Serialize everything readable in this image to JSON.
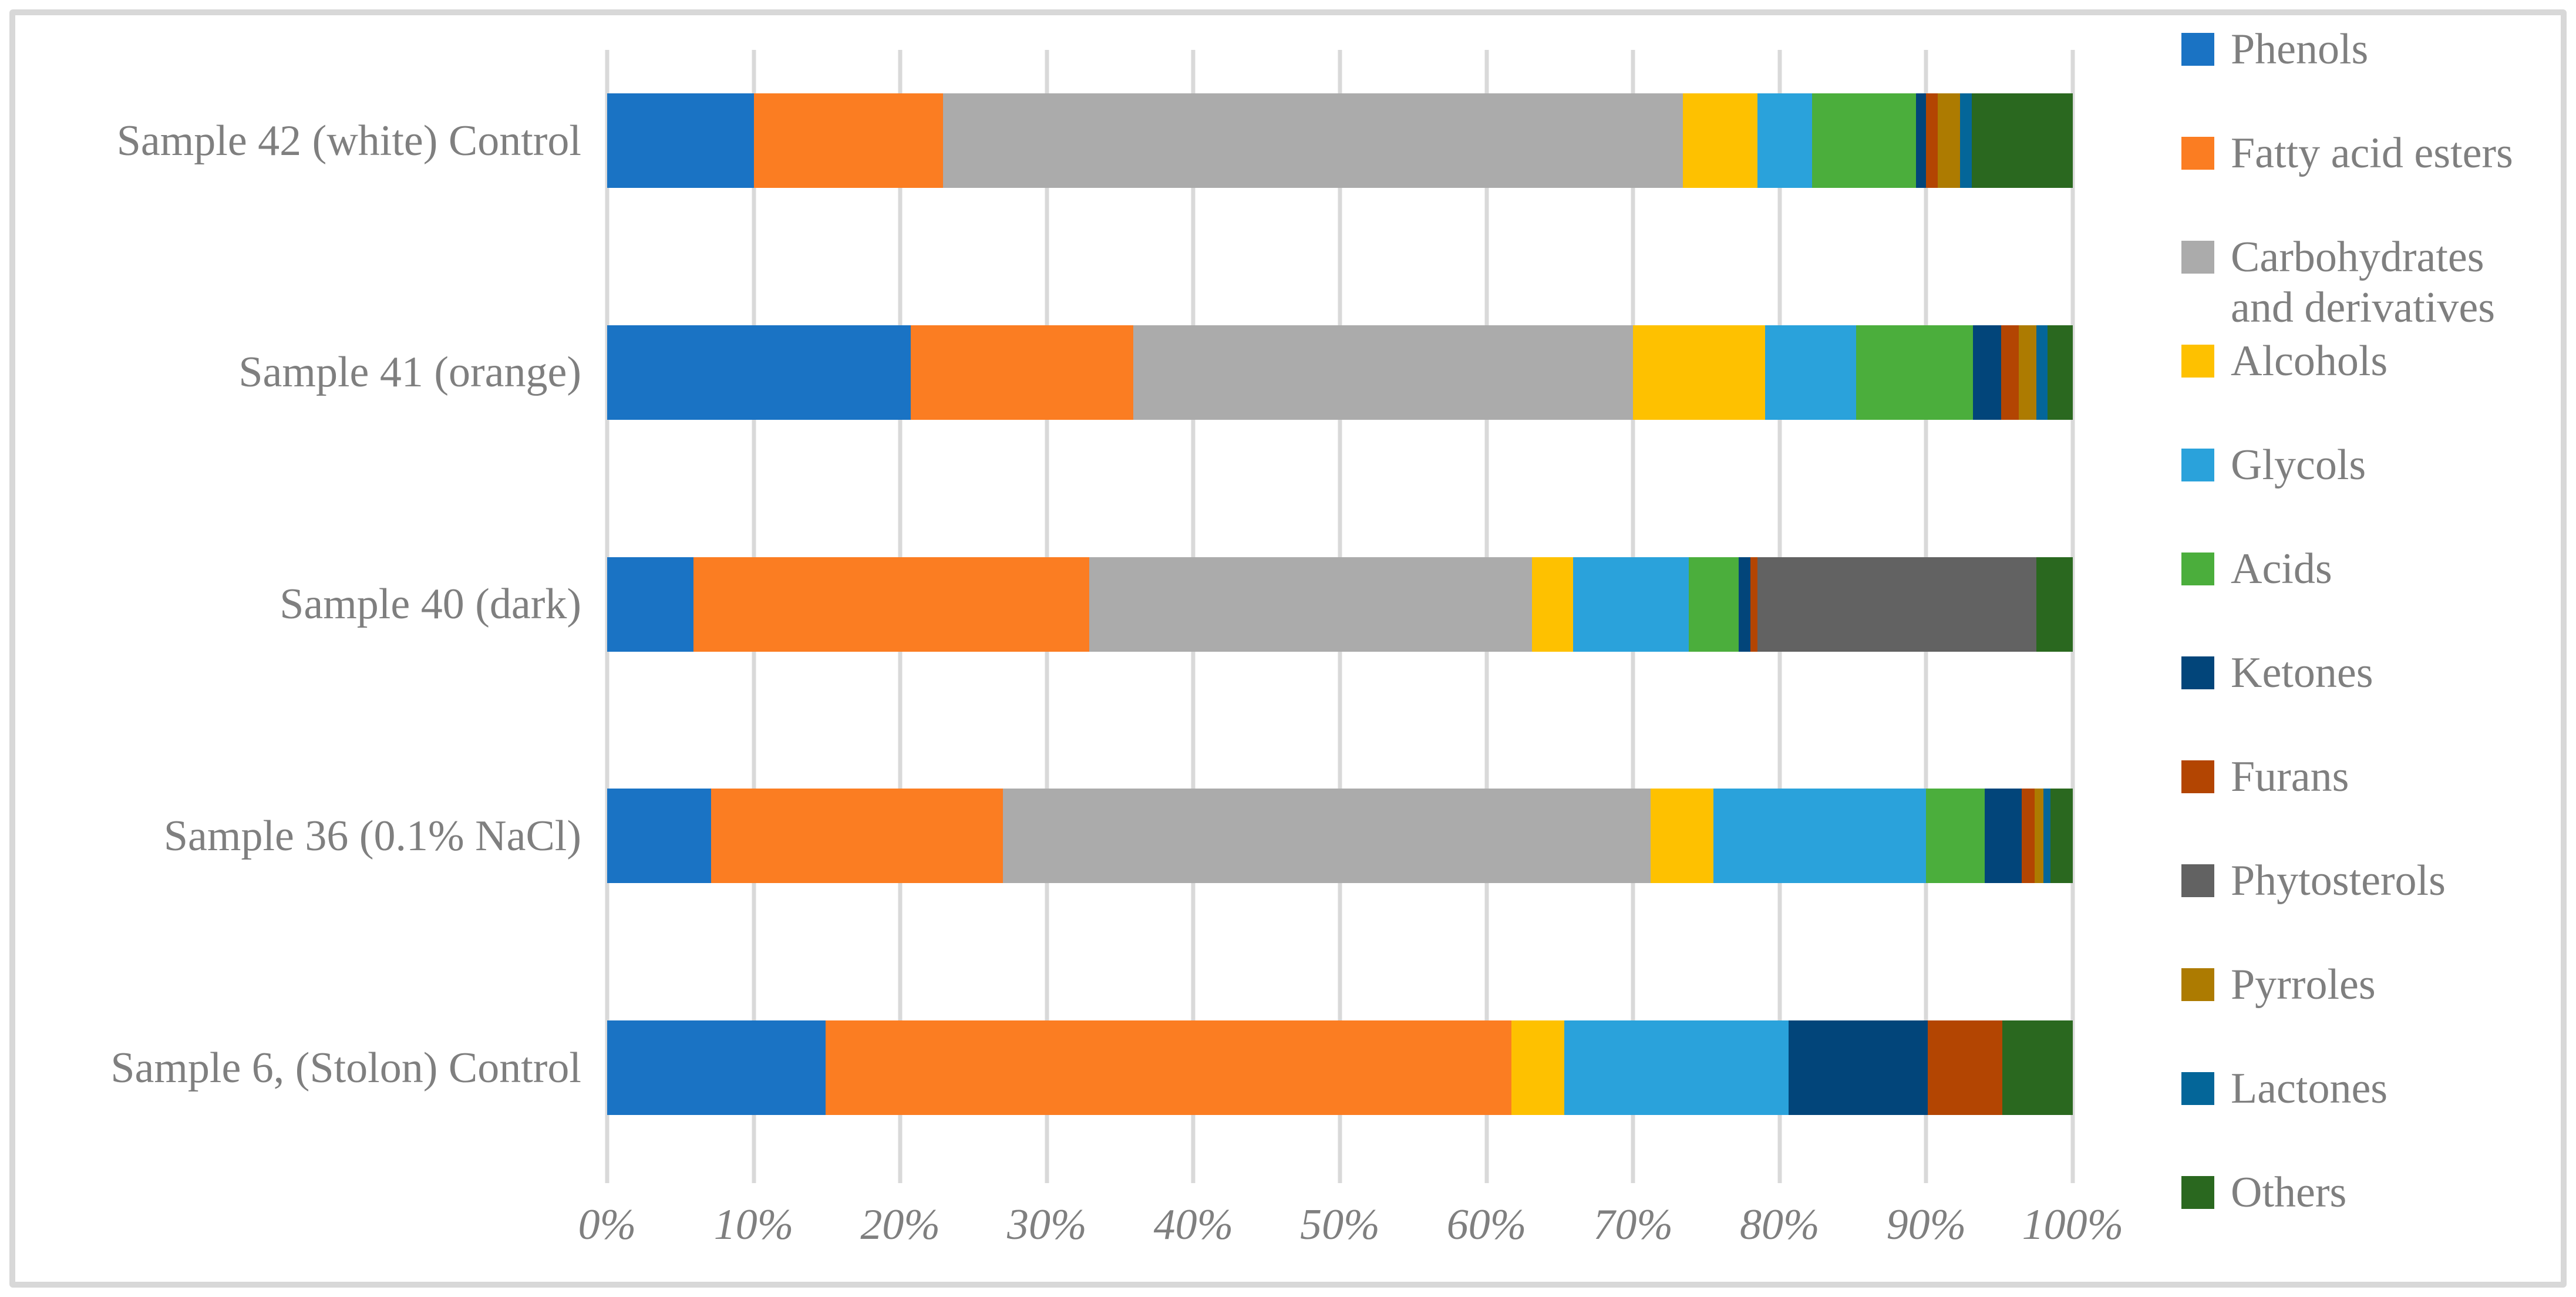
{
  "chart_data": {
    "type": "bar",
    "orientation": "horizontal",
    "stacked": true,
    "title": "",
    "xlabel": "",
    "ylabel": "",
    "grid": true,
    "legend_position": "right",
    "x_axis": {
      "min": 0,
      "max": 100,
      "tick_step": 10,
      "ticks": [
        "0%",
        "10%",
        "20%",
        "30%",
        "40%",
        "50%",
        "60%",
        "70%",
        "80%",
        "90%",
        "100%"
      ]
    },
    "categories": [
      "Sample 42 (white) Control",
      "Sample 41 (orange)",
      "Sample 40 (dark)",
      "Sample 36 (0.1% NaCl)",
      "Sample 6, (Stolon) Control"
    ],
    "series": [
      {
        "name": "Phenols",
        "color": "#1A73C4",
        "values": [
          10.0,
          20.7,
          5.9,
          7.1,
          14.9
        ]
      },
      {
        "name": "Fatty acid esters",
        "color": "#FB7D22",
        "values": [
          12.9,
          15.2,
          27.0,
          19.9,
          46.8
        ]
      },
      {
        "name": "Carbohydrates and derivatives",
        "color": "#ABABAB",
        "label_lines": [
          "Carbohydrates",
          "and derivatives"
        ],
        "values": [
          50.5,
          34.1,
          30.2,
          44.2,
          0
        ]
      },
      {
        "name": "Alcohols",
        "color": "#FEC100",
        "values": [
          5.1,
          9.0,
          2.8,
          4.3,
          3.6
        ]
      },
      {
        "name": "Glycols",
        "color": "#2AA2DB",
        "values": [
          3.7,
          6.2,
          7.9,
          14.5,
          15.3
        ]
      },
      {
        "name": "Acids",
        "color": "#4BAE3C",
        "values": [
          7.1,
          8.0,
          3.4,
          4.0,
          0
        ]
      },
      {
        "name": "Ketones",
        "color": "#02457A",
        "values": [
          0.7,
          1.9,
          0.8,
          2.5,
          9.5
        ]
      },
      {
        "name": "Furans",
        "color": "#B34502",
        "values": [
          0.8,
          1.2,
          0.5,
          0.9,
          5.1
        ]
      },
      {
        "name": "Phytosterols",
        "color": "#626262",
        "values": [
          0,
          0,
          19.0,
          0,
          0
        ]
      },
      {
        "name": "Pyrroles",
        "color": "#AD7B01",
        "values": [
          1.5,
          1.2,
          0,
          0.6,
          0
        ]
      },
      {
        "name": "Lactones",
        "color": "#046699",
        "values": [
          0.8,
          0.8,
          0,
          0.5,
          0
        ]
      },
      {
        "name": "Others",
        "color": "#2A681F",
        "values": [
          6.9,
          1.7,
          2.5,
          1.5,
          4.8
        ]
      }
    ],
    "colors": {
      "gridline": "#D9D9D9",
      "frame_border": "#D8D8D8",
      "text": "#7F7F7F",
      "background": "#FFFFFF"
    }
  }
}
